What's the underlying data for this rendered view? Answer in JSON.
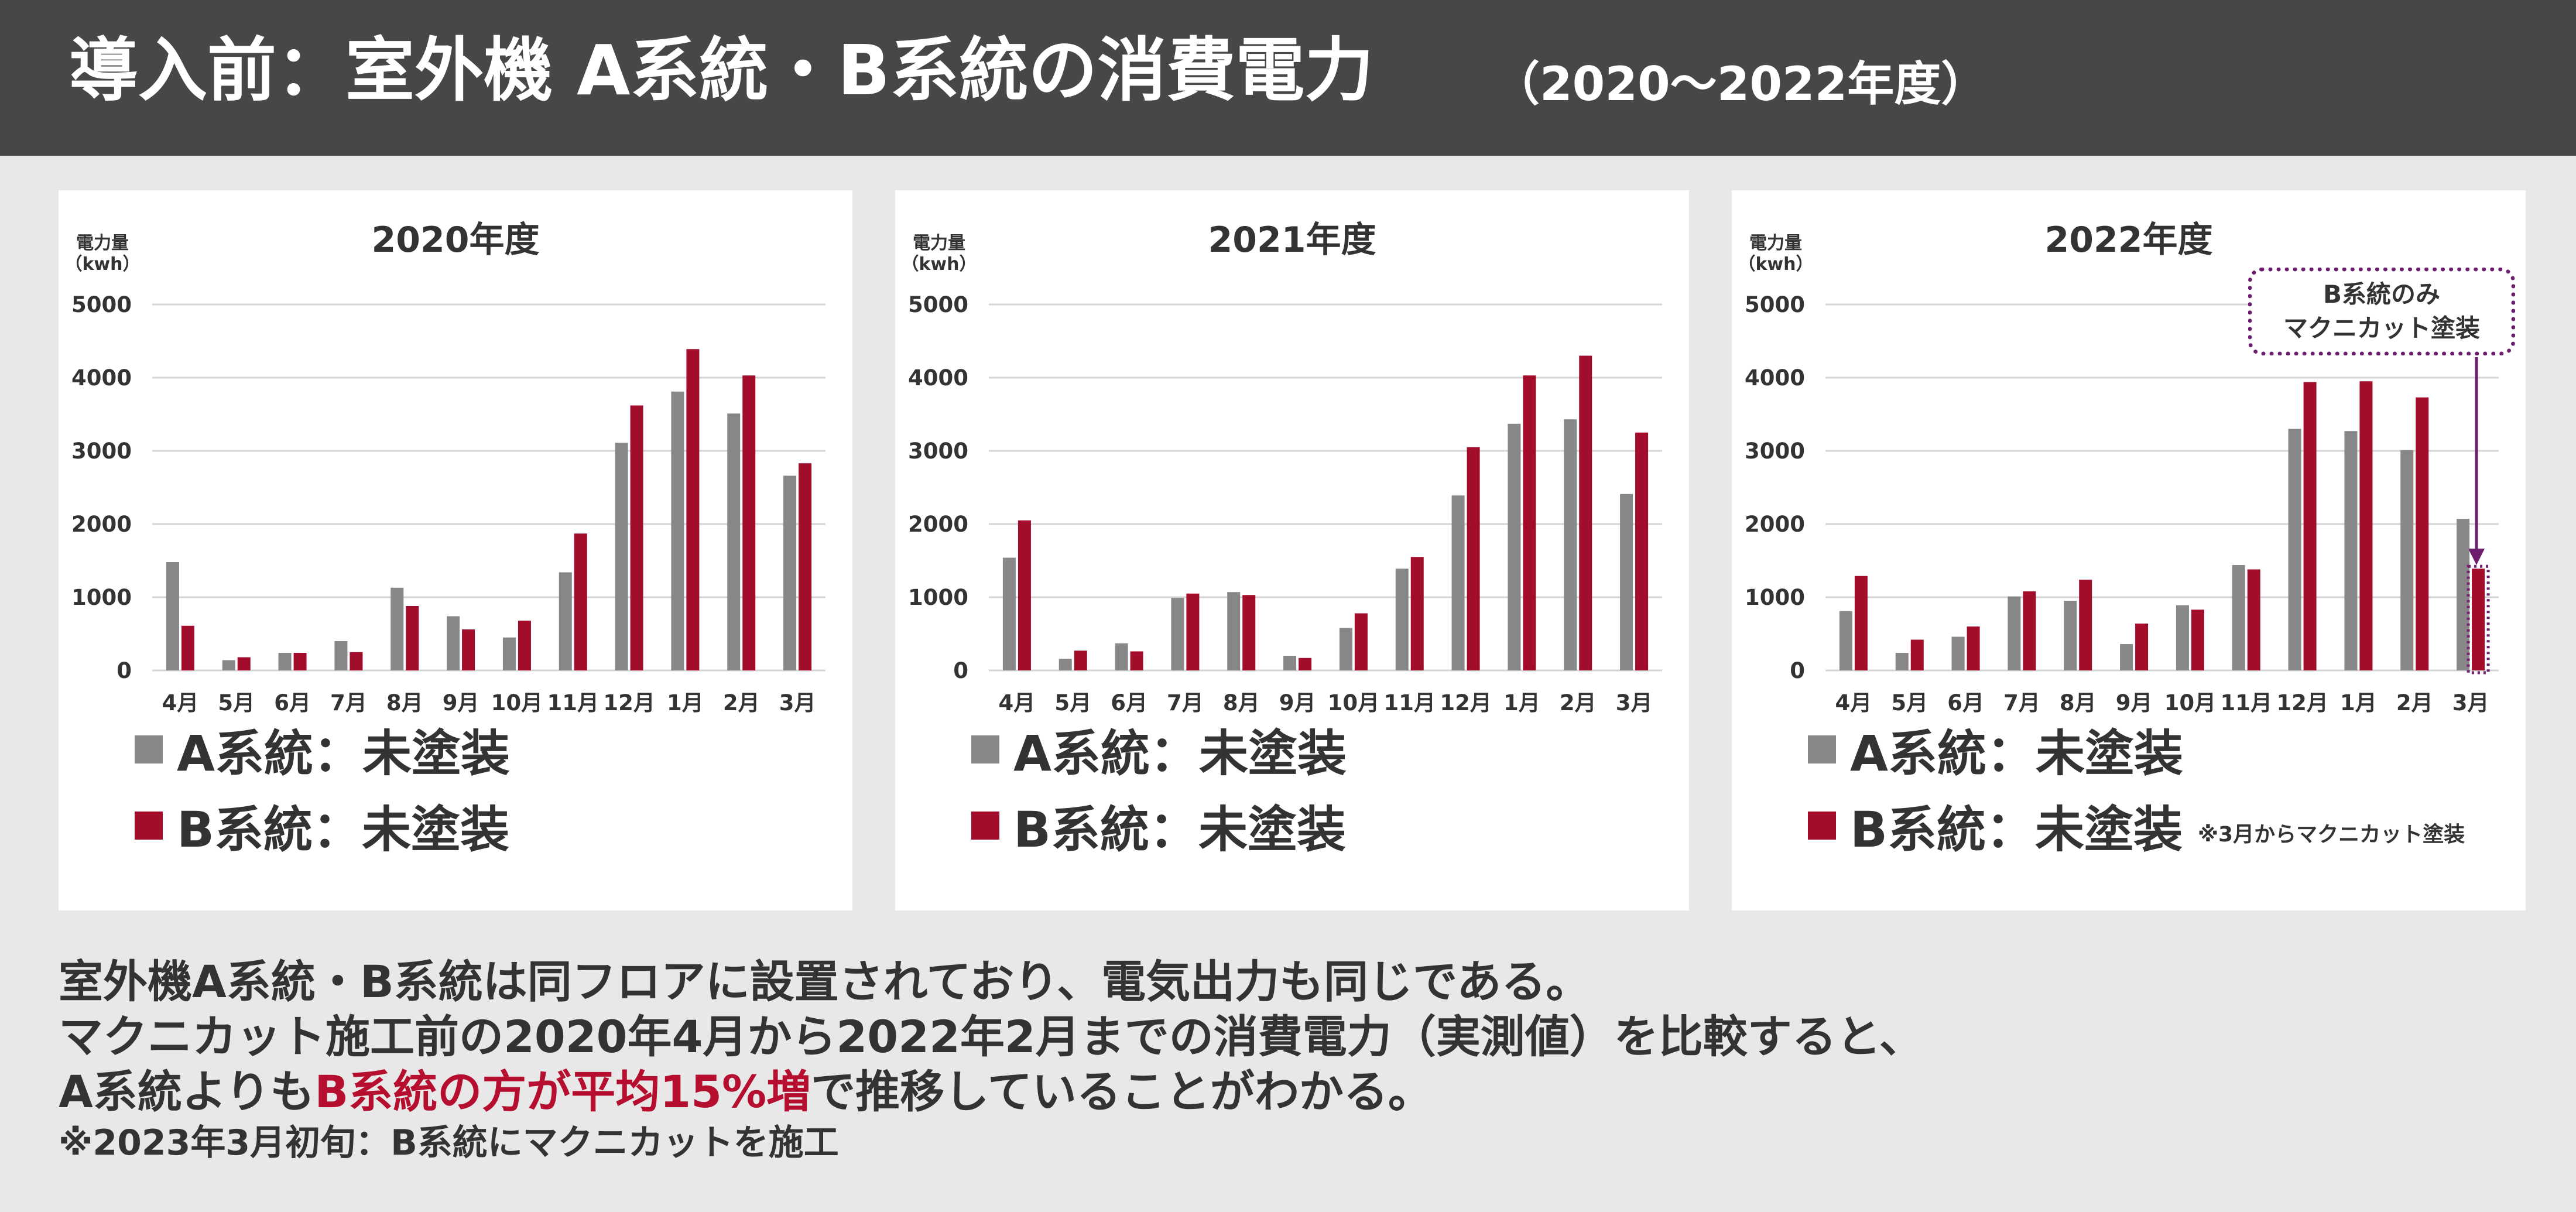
{
  "header": {
    "title": "導入前：室外機 A系統・B系統の消費電力",
    "subtitle": "（2020〜2022年度）"
  },
  "colors": {
    "a": "#878787",
    "b": "#a30d2c",
    "header_bg": "#474747",
    "highlight": "#b50e2e",
    "callout_border": "#6e1e6e"
  },
  "chart_data": [
    {
      "type": "bar",
      "title": "2020年度",
      "ylabel": "電力量\n（kwh）",
      "ylim": [
        0,
        5000
      ],
      "yticks": [
        "0",
        "1000",
        "2000",
        "3000",
        "4000",
        "5000"
      ],
      "categories": [
        "4月",
        "5月",
        "6月",
        "7月",
        "8月",
        "9月",
        "10月",
        "11月",
        "12月",
        "1月",
        "2月",
        "3月"
      ],
      "series": [
        {
          "name": "A系統：未塗装",
          "values": [
            1480,
            140,
            240,
            400,
            1130,
            740,
            450,
            1340,
            3110,
            3810,
            3510,
            2660
          ]
        },
        {
          "name": "B系統：未塗装",
          "values": [
            610,
            180,
            240,
            250,
            880,
            560,
            680,
            1870,
            3620,
            4390,
            4030,
            2830
          ]
        }
      ],
      "legend": [
        "A系統：未塗装",
        "B系統：未塗装"
      ]
    },
    {
      "type": "bar",
      "title": "2021年度",
      "ylabel": "電力量\n（kwh）",
      "ylim": [
        0,
        5000
      ],
      "yticks": [
        "0",
        "1000",
        "2000",
        "3000",
        "4000",
        "5000"
      ],
      "categories": [
        "4月",
        "5月",
        "6月",
        "7月",
        "8月",
        "9月",
        "10月",
        "11月",
        "12月",
        "1月",
        "2月",
        "3月"
      ],
      "series": [
        {
          "name": "A系統：未塗装",
          "values": [
            1540,
            160,
            370,
            990,
            1070,
            200,
            580,
            1390,
            2390,
            3370,
            3430,
            2410
          ]
        },
        {
          "name": "B系統：未塗装",
          "values": [
            2050,
            270,
            260,
            1050,
            1030,
            170,
            780,
            1550,
            3050,
            4030,
            4300,
            3250
          ]
        }
      ],
      "legend": [
        "A系統：未塗装",
        "B系統：未塗装"
      ]
    },
    {
      "type": "bar",
      "title": "2022年度",
      "ylabel": "電力量\n（kwh）",
      "ylim": [
        0,
        5000
      ],
      "yticks": [
        "0",
        "1000",
        "2000",
        "3000",
        "4000",
        "5000"
      ],
      "categories": [
        "4月",
        "5月",
        "6月",
        "7月",
        "8月",
        "9月",
        "10月",
        "11月",
        "12月",
        "1月",
        "2月",
        "3月"
      ],
      "series": [
        {
          "name": "A系統：未塗装",
          "values": [
            810,
            240,
            460,
            1010,
            950,
            360,
            890,
            1440,
            3300,
            3270,
            3010,
            2070
          ]
        },
        {
          "name": "B系統：未塗装",
          "values": [
            1290,
            420,
            600,
            1080,
            1240,
            640,
            830,
            1380,
            3940,
            3950,
            3730,
            1390
          ]
        }
      ],
      "legend": [
        "A系統：未塗装",
        "B系統：未塗装"
      ],
      "legend_note": "※3月からマクニカット塗装",
      "annotation": {
        "text_line1": "B系統のみ",
        "text_line2": "マクニカット塗装"
      }
    }
  ],
  "body": {
    "line1": "室外機A系統・B系統は同フロアに設置されており、電気出力も同じである。",
    "line2": "マクニカット施工前の2020年4月から2022年2月までの消費電力（実測値）を比較すると、",
    "line3_pre": "A系統よりも",
    "line3_hl": "B系統の方が平均15%増",
    "line3_post": "で推移していることがわかる。",
    "note": "※2023年3月初旬：B系統にマクニカットを施工"
  }
}
